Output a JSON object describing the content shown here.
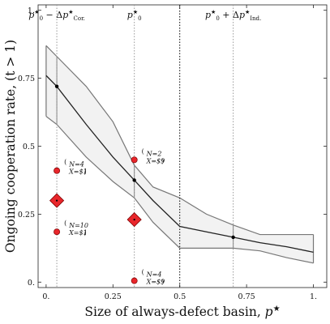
{
  "chart_data": {
    "type": "line",
    "xlabel": "Size of always-defect basin, ",
    "xlabel_symbol": "p",
    "xlabel_sup": "★",
    "ylabel": "Ongoing cooperation rate, (t > 1)",
    "xlim": [
      -0.03,
      1.05
    ],
    "ylim": [
      -0.02,
      1.02
    ],
    "xticks": [
      0.0,
      0.25,
      0.5,
      0.75,
      1.0
    ],
    "xtick_labels": [
      "0.",
      "0.25",
      "0.5",
      "0.75",
      "1."
    ],
    "yticks": [
      0.0,
      0.25,
      0.5,
      0.75,
      1.0
    ],
    "ytick_labels": [
      "0.",
      "0.25",
      "0.5",
      "0.75",
      "1."
    ],
    "grid": false,
    "model": {
      "x": [
        0.0,
        0.04,
        0.15,
        0.25,
        0.33,
        0.4,
        0.5,
        0.6,
        0.7,
        0.8,
        0.9,
        1.0
      ],
      "y": [
        0.76,
        0.72,
        0.58,
        0.46,
        0.375,
        0.3,
        0.205,
        0.185,
        0.165,
        0.145,
        0.13,
        0.11
      ],
      "lower": [
        0.61,
        0.58,
        0.46,
        0.37,
        0.31,
        0.22,
        0.125,
        0.125,
        0.125,
        0.115,
        0.09,
        0.07
      ],
      "upper": [
        0.87,
        0.83,
        0.72,
        0.59,
        0.43,
        0.35,
        0.31,
        0.25,
        0.21,
        0.175,
        0.175,
        0.175
      ],
      "line_color": "#222222",
      "band_fill": "#f2f2f2",
      "band_stroke": "#777777"
    },
    "highlight_points": [
      {
        "x": 0.04,
        "y": 0.72
      },
      {
        "x": 0.33,
        "y": 0.375
      },
      {
        "x": 0.7,
        "y": 0.165
      }
    ],
    "vlines": [
      {
        "x": 0.04,
        "style": "dotted",
        "color": "#999999",
        "label": "p₀★ − Δp★Cor."
      },
      {
        "x": 0.33,
        "style": "dotted",
        "color": "#999999",
        "label": "p₀★"
      },
      {
        "x": 0.5,
        "style": "dotted",
        "color": "#000000",
        "label": ""
      },
      {
        "x": 0.7,
        "style": "dotted",
        "color": "#999999",
        "label": "p₀★ + Δp★Ind."
      }
    ],
    "observations": [
      {
        "x": 0.04,
        "y": 0.41,
        "N": "N=4",
        "X": "X=$1",
        "label_side": "right"
      },
      {
        "x": 0.04,
        "y": 0.185,
        "N": "N=10",
        "X": "X=$1",
        "label_side": "right"
      },
      {
        "x": 0.33,
        "y": 0.45,
        "N": "N=2",
        "X": "X=$9",
        "label_side": "right"
      },
      {
        "x": 0.33,
        "y": 0.005,
        "N": "N=4",
        "X": "X=$9",
        "label_side": "right"
      }
    ],
    "means": [
      {
        "x": 0.04,
        "y": 0.3
      },
      {
        "x": 0.33,
        "y": 0.23
      }
    ],
    "colors": {
      "observation": "#e8262b",
      "observation_stroke": "#7a0000",
      "mean": "#e8262b"
    }
  }
}
